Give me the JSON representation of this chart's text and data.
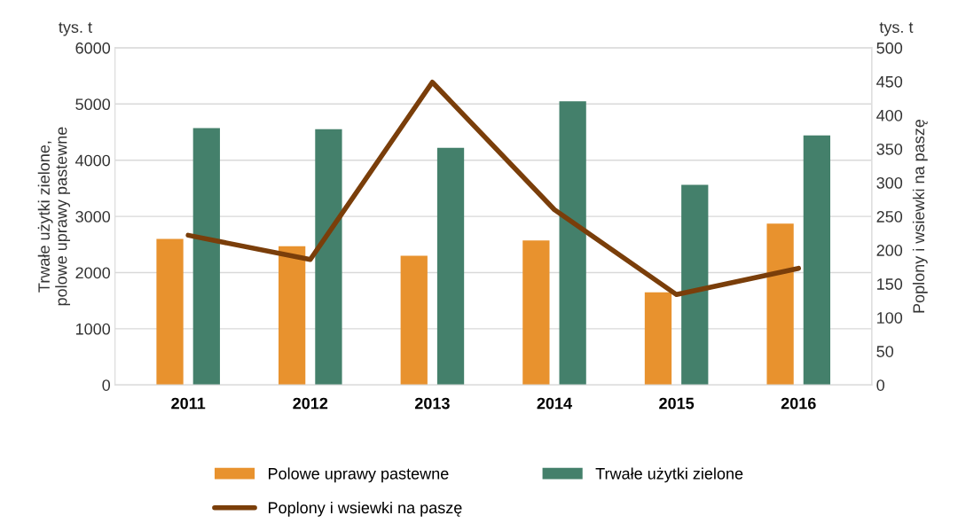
{
  "chart_data": {
    "type": "bar",
    "categories": [
      "2011",
      "2012",
      "2013",
      "2014",
      "2015",
      "2016"
    ],
    "ylabel": "Trwałe użytki zielone,\npolowe uprawy pastewne",
    "y2label": "Poplony i wsiewki na paszę",
    "annotations": [
      "tys. t",
      "tys. t"
    ],
    "ylim": [
      0,
      6000
    ],
    "yticks": [
      0,
      1000,
      2000,
      3000,
      4000,
      5000,
      6000
    ],
    "y2lim": [
      0,
      500
    ],
    "y2ticks": [
      0,
      50,
      100,
      150,
      200,
      250,
      300,
      350,
      400,
      450,
      500
    ],
    "grid": "y",
    "legend": "bottom",
    "series": [
      {
        "name": "Polowe uprawy pastewne",
        "color": "#e8922e",
        "values": [
          2600,
          2470,
          2300,
          2570,
          1650,
          2870
        ]
      },
      {
        "name": "Trwałe użytki zielone",
        "color": "#44806b",
        "values": [
          4570,
          4550,
          4220,
          5050,
          3560,
          4440
        ]
      },
      {
        "name": "Poplony i wsiewki na paszę",
        "type": "line",
        "axis": "y2",
        "color": "#7a3e0a",
        "values": [
          222,
          186,
          449,
          260,
          134,
          173
        ]
      }
    ]
  }
}
